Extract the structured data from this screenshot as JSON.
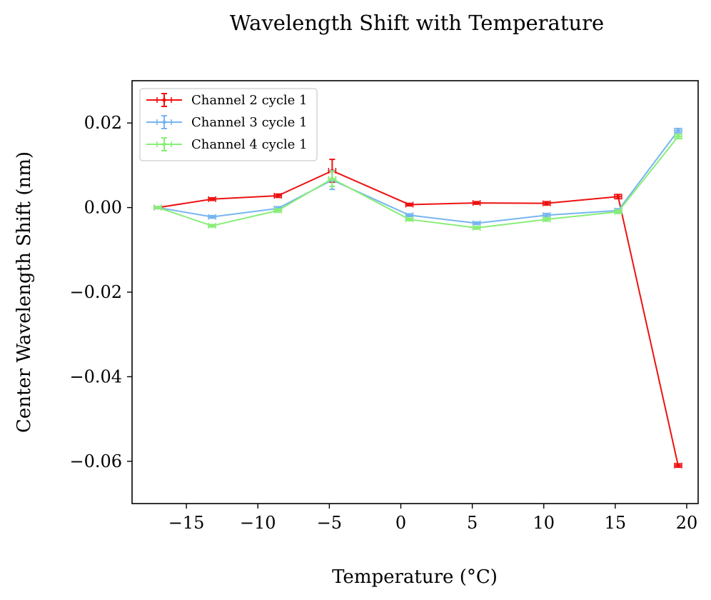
{
  "chart_data": {
    "type": "line",
    "title": "Wavelength Shift with Temperature",
    "xlabel": "Temperature (°C)",
    "ylabel": "Center Wavelength Shift (nm)",
    "xlim": [
      -18.8,
      20.8
    ],
    "ylim": [
      -0.07,
      0.03
    ],
    "xticks": [
      -15,
      -10,
      -5,
      0,
      5,
      10,
      15,
      20
    ],
    "xtick_labels": [
      "−15",
      "−10",
      "−5",
      "0",
      "5",
      "10",
      "15",
      "20"
    ],
    "yticks": [
      0.02,
      0.0,
      -0.02,
      -0.04,
      -0.06
    ],
    "ytick_labels": [
      "0.02",
      "0.00",
      "−0.02",
      "−0.04",
      "−0.06"
    ],
    "grid": false,
    "legend_position": "top-left",
    "x": [
      -17.0,
      -13.2,
      -8.6,
      -4.8,
      0.6,
      5.3,
      10.2,
      15.2,
      19.4
    ],
    "series": [
      {
        "name": "Channel 2 cycle 1",
        "color": "#ee1111",
        "values": [
          0.0,
          0.002,
          0.0028,
          0.0087,
          0.0007,
          0.0011,
          0.001,
          0.0026,
          -0.061
        ],
        "yerr": [
          0.0002,
          0.0003,
          0.0004,
          0.0027,
          0.0003,
          0.0003,
          0.0004,
          0.0005,
          0.0004
        ]
      },
      {
        "name": "Channel 3 cycle 1",
        "color": "#77b5f0",
        "values": [
          0.0,
          -0.0022,
          -0.0002,
          0.0065,
          -0.0018,
          -0.0037,
          -0.0018,
          -0.0007,
          0.0182
        ],
        "yerr": [
          0.0002,
          0.0003,
          0.0004,
          0.0022,
          0.0003,
          0.0003,
          0.0004,
          0.0004,
          0.0005
        ]
      },
      {
        "name": "Channel 4 cycle 1",
        "color": "#88ee77",
        "values": [
          0.0,
          -0.0043,
          -0.0007,
          0.0068,
          -0.0028,
          -0.0048,
          -0.0028,
          -0.001,
          0.0168
        ],
        "yerr": [
          0.0002,
          0.0003,
          0.0004,
          0.0018,
          0.0003,
          0.0003,
          0.0004,
          0.0004,
          0.0005
        ]
      }
    ]
  }
}
